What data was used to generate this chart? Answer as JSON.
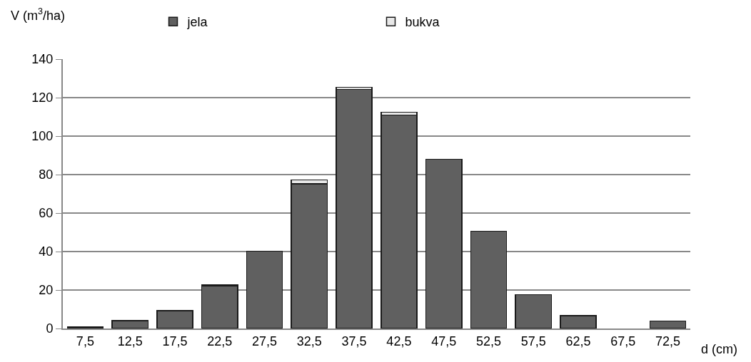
{
  "chart_data": {
    "type": "bar",
    "stacked": true,
    "xlabel": "d (cm)",
    "ylabel": "V (m$^{3}$/ha)",
    "categories": [
      "7,5",
      "12,5",
      "17,5",
      "22,5",
      "27,5",
      "32,5",
      "37,5",
      "42,5",
      "47,5",
      "52,5",
      "57,5",
      "62,5",
      "67,5",
      "72,5"
    ],
    "series": [
      {
        "name": "jela",
        "color": "#606060",
        "values": [
          0.7,
          4.1,
          9.1,
          22.1,
          40.2,
          75.1,
          124.2,
          111.0,
          88.0,
          50.6,
          17.6,
          6.6,
          null,
          3.9
        ]
      },
      {
        "name": "bukva",
        "color": "#e8e8e8",
        "values": [
          null,
          0.2,
          0.2,
          0.5,
          null,
          2.2,
          1.2,
          1.5,
          null,
          null,
          null,
          null,
          null,
          null
        ]
      }
    ],
    "ylim": [
      0,
      140
    ],
    "yticks": [
      0,
      20,
      40,
      60,
      80,
      100,
      120,
      140
    ],
    "grid": "y",
    "legend": "top"
  }
}
